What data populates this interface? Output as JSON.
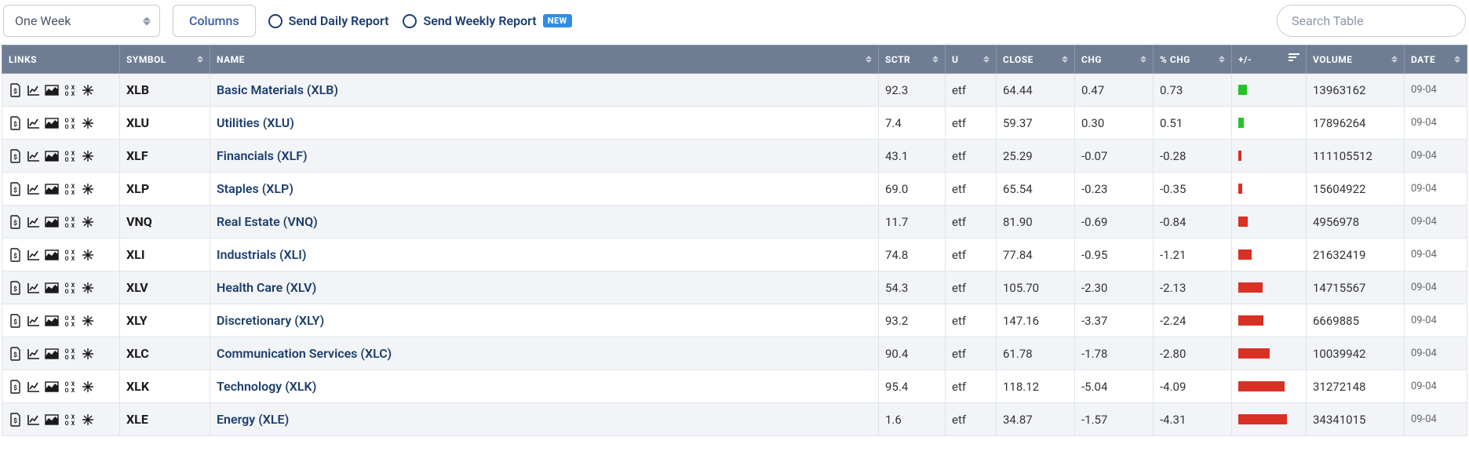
{
  "toolbar": {
    "period_selected": "One Week",
    "columns_label": "Columns",
    "radio_daily": "Send Daily Report",
    "radio_weekly": "Send Weekly Report",
    "new_badge": "NEW",
    "search_placeholder": "Search Table"
  },
  "columns": [
    {
      "key": "links",
      "label": "LINKS",
      "sortable": false
    },
    {
      "key": "symbol",
      "label": "SYMBOL",
      "sortable": true
    },
    {
      "key": "name",
      "label": "NAME",
      "sortable": true
    },
    {
      "key": "sctr",
      "label": "SCTR",
      "sortable": true
    },
    {
      "key": "u",
      "label": "U",
      "sortable": true
    },
    {
      "key": "close",
      "label": "CLOSE",
      "sortable": true
    },
    {
      "key": "chg",
      "label": "CHG",
      "sortable": true
    },
    {
      "key": "pctchg",
      "label": "% CHG",
      "sortable": true
    },
    {
      "key": "pm",
      "label": "+/-",
      "sortable": true,
      "sorted_desc": true
    },
    {
      "key": "volume",
      "label": "VOLUME",
      "sortable": true
    },
    {
      "key": "date",
      "label": "DATE",
      "sortable": true
    }
  ],
  "chart_colors": {
    "positive": "#28c228",
    "negative": "#d93025",
    "max_bar_pct": 4.31
  },
  "rows": [
    {
      "symbol": "XLB",
      "name": "Basic Materials (XLB)",
      "sctr": "92.3",
      "u": "etf",
      "close": "64.44",
      "chg": "0.47",
      "pctchg": "0.73",
      "pm_value": 0.73,
      "volume": "13963162",
      "date": "09-04"
    },
    {
      "symbol": "XLU",
      "name": "Utilities (XLU)",
      "sctr": "7.4",
      "u": "etf",
      "close": "59.37",
      "chg": "0.30",
      "pctchg": "0.51",
      "pm_value": 0.51,
      "volume": "17896264",
      "date": "09-04"
    },
    {
      "symbol": "XLF",
      "name": "Financials (XLF)",
      "sctr": "43.1",
      "u": "etf",
      "close": "25.29",
      "chg": "-0.07",
      "pctchg": "-0.28",
      "pm_value": -0.28,
      "volume": "111105512",
      "date": "09-04"
    },
    {
      "symbol": "XLP",
      "name": "Staples (XLP)",
      "sctr": "69.0",
      "u": "etf",
      "close": "65.54",
      "chg": "-0.23",
      "pctchg": "-0.35",
      "pm_value": -0.35,
      "volume": "15604922",
      "date": "09-04"
    },
    {
      "symbol": "VNQ",
      "name": "Real Estate (VNQ)",
      "sctr": "11.7",
      "u": "etf",
      "close": "81.90",
      "chg": "-0.69",
      "pctchg": "-0.84",
      "pm_value": -0.84,
      "volume": "4956978",
      "date": "09-04"
    },
    {
      "symbol": "XLI",
      "name": "Industrials (XLI)",
      "sctr": "74.8",
      "u": "etf",
      "close": "77.84",
      "chg": "-0.95",
      "pctchg": "-1.21",
      "pm_value": -1.21,
      "volume": "21632419",
      "date": "09-04"
    },
    {
      "symbol": "XLV",
      "name": "Health Care (XLV)",
      "sctr": "54.3",
      "u": "etf",
      "close": "105.70",
      "chg": "-2.30",
      "pctchg": "-2.13",
      "pm_value": -2.13,
      "volume": "14715567",
      "date": "09-04"
    },
    {
      "symbol": "XLY",
      "name": "Discretionary (XLY)",
      "sctr": "93.2",
      "u": "etf",
      "close": "147.16",
      "chg": "-3.37",
      "pctchg": "-2.24",
      "pm_value": -2.24,
      "volume": "6669885",
      "date": "09-04"
    },
    {
      "symbol": "XLC",
      "name": "Communication Services (XLC)",
      "sctr": "90.4",
      "u": "etf",
      "close": "61.78",
      "chg": "-1.78",
      "pctchg": "-2.80",
      "pm_value": -2.8,
      "volume": "10039942",
      "date": "09-04"
    },
    {
      "symbol": "XLK",
      "name": "Technology (XLK)",
      "sctr": "95.4",
      "u": "etf",
      "close": "118.12",
      "chg": "-5.04",
      "pctchg": "-4.09",
      "pm_value": -4.09,
      "volume": "31272148",
      "date": "09-04"
    },
    {
      "symbol": "XLE",
      "name": "Energy (XLE)",
      "sctr": "1.6",
      "u": "etf",
      "close": "34.87",
      "chg": "-1.57",
      "pctchg": "-4.31",
      "pm_value": -4.31,
      "volume": "34341015",
      "date": "09-04"
    }
  ]
}
